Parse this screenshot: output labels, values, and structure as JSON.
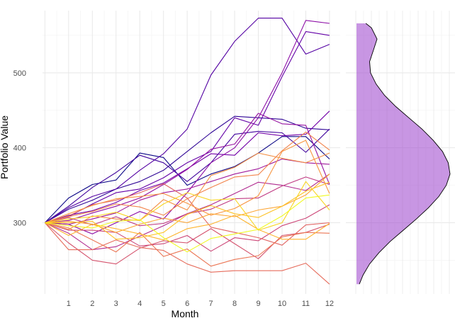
{
  "chart_data": [
    {
      "type": "line",
      "title": "",
      "xlabel": "Month",
      "ylabel": "Portfolio Value",
      "x": [
        0,
        1,
        2,
        3,
        4,
        5,
        6,
        7,
        8,
        9,
        10,
        11,
        12
      ],
      "x_tick_labels": [
        "1",
        "2",
        "3",
        "4",
        "5",
        "6",
        "7",
        "8",
        "9",
        "10",
        "11",
        "12"
      ],
      "y_ticks": [
        300,
        400,
        500
      ],
      "xlim": [
        -0.1,
        12.45
      ],
      "ylim": [
        205,
        583
      ],
      "grid": true,
      "legend": "none",
      "series": [
        {
          "name": "path-1",
          "color": "#0D0887",
          "values": [
            300,
            333,
            351,
            357,
            393,
            387,
            350,
            365,
            375,
            393,
            415,
            415,
            385
          ]
        },
        {
          "name": "path-2",
          "color": "#2F0596",
          "values": [
            300,
            318,
            330,
            345,
            355,
            370,
            395,
            420,
            442,
            440,
            438,
            426,
            424
          ]
        },
        {
          "name": "path-3",
          "color": "#41049D",
          "values": [
            300,
            322,
            347,
            367,
            390,
            380,
            355,
            380,
            418,
            422,
            420,
            394,
            425
          ]
        },
        {
          "name": "path-4",
          "color": "#5402A3",
          "values": [
            300,
            320,
            335,
            345,
            370,
            392,
            425,
            497,
            542,
            573,
            573,
            525,
            538
          ]
        },
        {
          "name": "path-5",
          "color": "#6300A7",
          "values": [
            300,
            308,
            325,
            340,
            345,
            360,
            380,
            395,
            440,
            430,
            495,
            555,
            550
          ]
        },
        {
          "name": "path-6",
          "color": "#7201A8",
          "values": [
            300,
            310,
            316,
            327,
            343,
            353,
            372,
            392,
            390,
            420,
            416,
            418,
            449
          ]
        },
        {
          "name": "path-7",
          "color": "#8B0AA5",
          "values": [
            300,
            298,
            285,
            300,
            315,
            305,
            340,
            380,
            400,
            440,
            500,
            570,
            566
          ]
        },
        {
          "name": "path-8",
          "color": "#9512A1",
          "values": [
            300,
            303,
            313,
            322,
            333,
            351,
            371,
            398,
            405,
            446,
            432,
            430,
            351
          ]
        },
        {
          "name": "path-9",
          "color": "#A01A9C",
          "values": [
            300,
            298,
            305,
            313,
            330,
            340,
            345,
            355,
            365,
            372,
            385,
            380,
            378
          ]
        },
        {
          "name": "path-10",
          "color": "#B12A90",
          "values": [
            300,
            286,
            264,
            268,
            282,
            296,
            312,
            324,
            339,
            354,
            350,
            343,
            365
          ]
        },
        {
          "name": "path-11",
          "color": "#C03A83",
          "values": [
            300,
            307,
            297,
            308,
            296,
            299,
            312,
            318,
            332,
            333,
            349,
            361,
            351
          ]
        },
        {
          "name": "path-12",
          "color": "#CC4778",
          "values": [
            300,
            290,
            290,
            287,
            269,
            272,
            283,
            262,
            280,
            276,
            296,
            306,
            324
          ]
        },
        {
          "name": "path-13",
          "color": "#D5546E",
          "values": [
            300,
            273,
            250,
            245,
            266,
            276,
            273,
            292,
            272,
            252,
            283,
            287,
            298
          ]
        },
        {
          "name": "path-14",
          "color": "#E16462",
          "values": [
            300,
            309,
            324,
            330,
            340,
            352,
            333,
            294,
            287,
            280,
            270,
            297,
            300
          ]
        },
        {
          "name": "path-15",
          "color": "#E66C5C",
          "values": [
            300,
            264,
            264,
            277,
            267,
            263,
            245,
            234,
            236,
            236,
            236,
            246,
            218
          ]
        },
        {
          "name": "path-16",
          "color": "#EB7655",
          "values": [
            300,
            293,
            277,
            261,
            287,
            255,
            265,
            242,
            251,
            256,
            281,
            287,
            286
          ]
        },
        {
          "name": "path-17",
          "color": "#F2844B",
          "values": [
            300,
            308,
            315,
            325,
            321,
            310,
            332,
            347,
            361,
            364,
            396,
            421,
            397
          ]
        },
        {
          "name": "path-18",
          "color": "#F48F44",
          "values": [
            300,
            291,
            309,
            305,
            303,
            331,
            317,
            363,
            374,
            393,
            386,
            380,
            393
          ]
        },
        {
          "name": "path-19",
          "color": "#F89540",
          "values": [
            300,
            312,
            323,
            332,
            335,
            339,
            326,
            310,
            319,
            336,
            395,
            410,
            339
          ]
        },
        {
          "name": "path-20",
          "color": "#FCA636",
          "values": [
            300,
            302,
            298,
            287,
            298,
            306,
            300,
            312,
            308,
            317,
            322,
            337,
            365
          ]
        },
        {
          "name": "path-21",
          "color": "#FDB42F",
          "values": [
            300,
            283,
            298,
            292,
            285,
            277,
            292,
            298,
            310,
            291,
            278,
            278,
            299
          ]
        },
        {
          "name": "path-22",
          "color": "#FDC328",
          "values": [
            300,
            300,
            302,
            278,
            280,
            287,
            311,
            323,
            312,
            307,
            322,
            342,
            354
          ]
        },
        {
          "name": "path-23",
          "color": "#F8D524",
          "values": [
            300,
            305,
            308,
            314,
            303,
            325,
            340,
            330,
            332,
            290,
            300,
            355,
            317
          ]
        },
        {
          "name": "path-24",
          "color": "#F0F921",
          "values": [
            300,
            296,
            293,
            302,
            304,
            280,
            261,
            279,
            285,
            291,
            309,
            333,
            337
          ]
        }
      ]
    },
    {
      "type": "area",
      "subtype": "density",
      "title": "",
      "orientation": "vertical",
      "fill_color": "#9B3FCC",
      "fill_opacity": 0.55,
      "line_color": "#000000",
      "x_range": [
        0,
        1
      ],
      "y": [
        218,
        230,
        245,
        260,
        275,
        290,
        305,
        320,
        335,
        350,
        365,
        380,
        395,
        410,
        425,
        440,
        455,
        470,
        485,
        500,
        515,
        530,
        545,
        560,
        566
      ],
      "density": [
        0.03,
        0.07,
        0.14,
        0.24,
        0.36,
        0.5,
        0.64,
        0.77,
        0.88,
        0.96,
        1.0,
        0.98,
        0.92,
        0.82,
        0.7,
        0.56,
        0.42,
        0.3,
        0.21,
        0.15,
        0.14,
        0.18,
        0.22,
        0.16,
        0.1
      ]
    }
  ]
}
